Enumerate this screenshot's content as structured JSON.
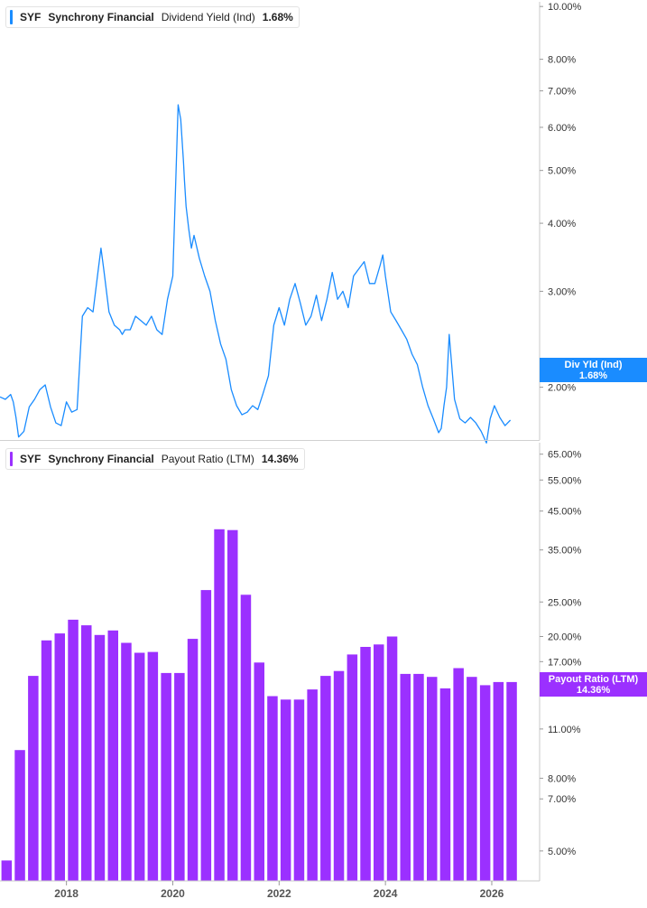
{
  "chart_data": [
    {
      "type": "line",
      "legend": {
        "ticker": "SYF",
        "company": "Synchrony Financial",
        "metric": "Dividend Yield (Ind)",
        "value": "1.68%"
      },
      "tag": {
        "label": "Div Yld (Ind)",
        "value": "1.68%"
      },
      "color": "#1a8cff",
      "y_scale": "log",
      "ylim": [
        1.6,
        10.2
      ],
      "y_ticks": [
        {
          "v": 10,
          "label": "10.00%"
        },
        {
          "v": 8,
          "label": "8.00%"
        },
        {
          "v": 7,
          "label": "7.00%"
        },
        {
          "v": 6,
          "label": "6.00%"
        },
        {
          "v": 5,
          "label": "5.00%"
        },
        {
          "v": 4,
          "label": "4.00%"
        },
        {
          "v": 3,
          "label": "3.00%"
        },
        {
          "v": 2,
          "label": "2.00%"
        }
      ],
      "series": [
        {
          "x": [
            2016.75,
            2016.85,
            2016.95,
            2017.0,
            2017.05,
            2017.1,
            2017.2,
            2017.3,
            2017.4,
            2017.5,
            2017.6,
            2017.7,
            2017.8,
            2017.9,
            2018.0,
            2018.1,
            2018.2,
            2018.3,
            2018.4,
            2018.5,
            2018.6,
            2018.65,
            2018.7,
            2018.8,
            2018.9,
            2019.0,
            2019.05,
            2019.1,
            2019.2,
            2019.3,
            2019.4,
            2019.5,
            2019.6,
            2019.7,
            2019.8,
            2019.9,
            2020.0,
            2020.1,
            2020.15,
            2020.2,
            2020.22,
            2020.25,
            2020.3,
            2020.35,
            2020.4,
            2020.5,
            2020.6,
            2020.7,
            2020.8,
            2020.9,
            2021.0,
            2021.1,
            2021.2,
            2021.3,
            2021.4,
            2021.5,
            2021.6,
            2021.7,
            2021.8,
            2021.9,
            2022.0,
            2022.1,
            2022.2,
            2022.3,
            2022.4,
            2022.5,
            2022.6,
            2022.7,
            2022.8,
            2022.9,
            2023.0,
            2023.1,
            2023.2,
            2023.3,
            2023.4,
            2023.5,
            2023.6,
            2023.7,
            2023.8,
            2023.9,
            2023.95,
            2024.0,
            2024.1,
            2024.2,
            2024.3,
            2024.4,
            2024.5,
            2024.6,
            2024.7,
            2024.8,
            2024.9,
            2025.0,
            2025.05,
            2025.1,
            2025.15,
            2025.2,
            2025.3,
            2025.4,
            2025.5,
            2025.6,
            2025.7,
            2025.8,
            2025.9,
            2025.97,
            2026.05,
            2026.15,
            2026.25,
            2026.35
          ],
          "y": [
            1.92,
            1.9,
            1.94,
            1.88,
            1.76,
            1.62,
            1.66,
            1.84,
            1.9,
            1.98,
            2.02,
            1.84,
            1.72,
            1.7,
            1.88,
            1.8,
            1.82,
            2.7,
            2.8,
            2.75,
            3.3,
            3.6,
            3.3,
            2.75,
            2.6,
            2.55,
            2.5,
            2.55,
            2.55,
            2.7,
            2.65,
            2.6,
            2.7,
            2.55,
            2.5,
            2.9,
            3.2,
            6.6,
            6.2,
            5.2,
            4.8,
            4.3,
            3.9,
            3.6,
            3.8,
            3.45,
            3.2,
            3.0,
            2.65,
            2.4,
            2.25,
            1.98,
            1.85,
            1.78,
            1.8,
            1.85,
            1.82,
            1.95,
            2.1,
            2.6,
            2.8,
            2.6,
            2.9,
            3.1,
            2.85,
            2.6,
            2.7,
            2.95,
            2.65,
            2.9,
            3.25,
            2.9,
            3.0,
            2.8,
            3.2,
            3.3,
            3.4,
            3.1,
            3.1,
            3.35,
            3.5,
            3.2,
            2.75,
            2.65,
            2.55,
            2.45,
            2.3,
            2.2,
            2.0,
            1.85,
            1.75,
            1.65,
            1.68,
            1.85,
            2.0,
            2.5,
            1.9,
            1.75,
            1.72,
            1.76,
            1.72,
            1.66,
            1.58,
            1.75,
            1.85,
            1.76,
            1.7,
            1.74
          ]
        }
      ]
    },
    {
      "type": "bar",
      "legend": {
        "ticker": "SYF",
        "company": "Synchrony Financial",
        "metric": "Payout Ratio (LTM)",
        "value": "14.36%"
      },
      "tag": {
        "label": "Payout Ratio (LTM)",
        "value": "14.36%"
      },
      "color": "#9b30ff",
      "y_scale": "log",
      "ylim": [
        4.12,
        70
      ],
      "y_ticks": [
        {
          "v": 65,
          "label": "65.00%"
        },
        {
          "v": 55,
          "label": "55.00%"
        },
        {
          "v": 45,
          "label": "45.00%"
        },
        {
          "v": 35,
          "label": "35.00%"
        },
        {
          "v": 25,
          "label": "25.00%"
        },
        {
          "v": 20,
          "label": "20.00%"
        },
        {
          "v": 17,
          "label": "17.00%"
        },
        {
          "v": 11,
          "label": "11.00%"
        },
        {
          "v": 8,
          "label": "8.00%"
        },
        {
          "v": 7,
          "label": "7.00%"
        },
        {
          "v": 5,
          "label": "5.00%"
        }
      ],
      "x_ticks": [
        {
          "v": 2018,
          "label": "2018"
        },
        {
          "v": 2020,
          "label": "2020"
        },
        {
          "v": 2022,
          "label": "2022"
        },
        {
          "v": 2024,
          "label": "2024"
        },
        {
          "v": 2026,
          "label": "2026"
        }
      ],
      "series": [
        {
          "x": [
            2016.875,
            2017.125,
            2017.375,
            2017.625,
            2017.875,
            2018.125,
            2018.375,
            2018.625,
            2018.875,
            2019.125,
            2019.375,
            2019.625,
            2019.875,
            2020.125,
            2020.375,
            2020.625,
            2020.875,
            2021.125,
            2021.375,
            2021.625,
            2021.875,
            2022.125,
            2022.375,
            2022.625,
            2022.875,
            2023.125,
            2023.375,
            2023.625,
            2023.875,
            2024.125,
            2024.375,
            2024.625,
            2024.875,
            2025.125,
            2025.375,
            2025.625,
            2025.875,
            2026.125,
            2026.375
          ],
          "y": [
            4.7,
            9.6,
            15.5,
            19.5,
            20.4,
            22.3,
            21.5,
            20.2,
            20.8,
            19.2,
            18.0,
            18.1,
            15.8,
            15.8,
            19.7,
            27.0,
            40.0,
            39.8,
            26.2,
            16.9,
            13.6,
            13.3,
            13.3,
            14.2,
            15.5,
            16.0,
            17.8,
            18.7,
            19.0,
            20.0,
            15.7,
            15.7,
            15.4,
            14.3,
            16.3,
            15.4,
            14.6,
            14.9,
            14.9
          ]
        }
      ]
    }
  ]
}
